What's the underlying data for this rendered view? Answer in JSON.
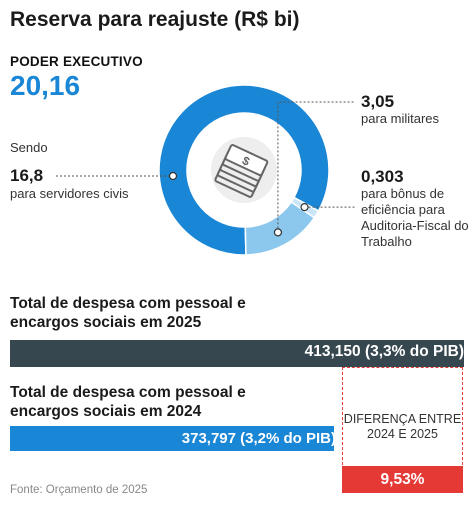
{
  "title": "Reserva para reajuste (R$ bi)",
  "executive": {
    "label": "PODER EXECUTIVO",
    "value": "20,16"
  },
  "sendo_label": "Sendo",
  "colors": {
    "main": "#1a86d6",
    "military": "#8cc7ee",
    "bonus": "#c9e5f7",
    "dark": "#37474f",
    "accent": "#e53935"
  },
  "chart_data": [
    {
      "type": "pie",
      "series": [
        {
          "name": "para servidores civis",
          "value": 16.8
        },
        {
          "name": "para militares",
          "value": 3.05
        },
        {
          "name": "para bônus de eficiência para Auditoria-Fiscal do Trabalho",
          "value": 0.303
        }
      ],
      "labels": {
        "left": {
          "value": "16,8",
          "text": "para servidores civis"
        },
        "right1": {
          "value": "3,05",
          "text": "para militares"
        },
        "right2": {
          "value": "0,303",
          "text": "para bônus de eficiência para Auditoria-Fiscal do Trabalho"
        }
      },
      "center_icon": "money-stack-icon"
    },
    {
      "type": "bar",
      "categories": [
        "2025",
        "2024"
      ],
      "values": [
        413150,
        373797
      ],
      "bar_labels": [
        "413,150 (3,3% do PIB)",
        "373,797 (3,2% do PIB)"
      ],
      "titles": [
        "Total de despesa com pessoal e encargos sociais em 2025",
        "Total de despesa com pessoal e encargos sociais em 2024"
      ],
      "difference": {
        "label": "DIFERENÇA ENTRE 2024 E 2025",
        "value": "9,53%"
      }
    }
  ],
  "source": "Fonte: Orçamento de 2025"
}
